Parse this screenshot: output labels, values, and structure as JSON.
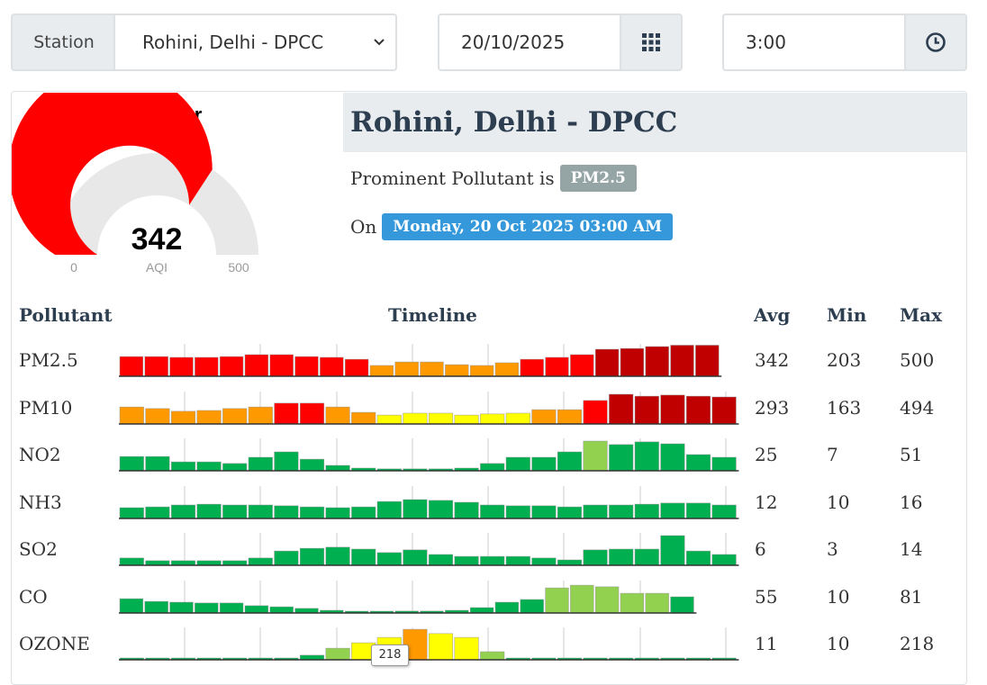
{
  "controls": {
    "station_label": "Station",
    "station_value": "Rohini, Delhi - DPCC",
    "date_value": "20/10/2025",
    "time_value": "3:00"
  },
  "gauge": {
    "category": "Very Poor",
    "value": 342,
    "value_text": "342",
    "min_text": "0",
    "max_text": "500",
    "unit_label": "AQI",
    "fill_color": "#ff0000",
    "track_color": "#e8e8e8"
  },
  "station": {
    "name": "Rohini, Delhi - DPCC",
    "prominent_prefix": "Prominent Pollutant is",
    "prominent_pollutant": "PM2.5",
    "on_prefix": "On",
    "datetime": "Monday, 20 Oct 2025 03:00 AM"
  },
  "table": {
    "headers": {
      "pollutant": "Pollutant",
      "timeline": "Timeline",
      "avg": "Avg",
      "min": "Min",
      "max": "Max"
    },
    "rows": [
      {
        "name": "PM2.5",
        "avg": "342",
        "min": "203",
        "max": "500"
      },
      {
        "name": "PM10",
        "avg": "293",
        "min": "163",
        "max": "494"
      },
      {
        "name": "NO2",
        "avg": "25",
        "min": "7",
        "max": "51"
      },
      {
        "name": "NH3",
        "avg": "12",
        "min": "10",
        "max": "16"
      },
      {
        "name": "SO2",
        "avg": "6",
        "min": "3",
        "max": "14"
      },
      {
        "name": "CO",
        "avg": "55",
        "min": "10",
        "max": "81"
      },
      {
        "name": "OZONE",
        "avg": "11",
        "min": "10",
        "max": "218"
      }
    ],
    "tooltip": "218"
  },
  "colors": {
    "good": "#00b050",
    "satisfactory": "#92d050",
    "moderate": "#ffff00",
    "poor": "#ff9900",
    "very_poor": "#ff0000",
    "severe": "#c00000"
  },
  "chart_data": {
    "type": "bar",
    "series": [
      {
        "name": "PM2.5",
        "levels": [
          0.73,
          0.73,
          0.7,
          0.7,
          0.73,
          0.8,
          0.8,
          0.73,
          0.7,
          0.63,
          0.4,
          0.53,
          0.53,
          0.43,
          0.4,
          0.5,
          0.63,
          0.7,
          0.8,
          1.0,
          1.03,
          1.1,
          1.15,
          1.15
        ],
        "colors": [
          "very_poor",
          "very_poor",
          "very_poor",
          "very_poor",
          "very_poor",
          "very_poor",
          "very_poor",
          "very_poor",
          "very_poor",
          "very_poor",
          "poor",
          "poor",
          "poor",
          "poor",
          "poor",
          "poor",
          "very_poor",
          "very_poor",
          "very_poor",
          "severe",
          "severe",
          "severe",
          "severe",
          "severe"
        ]
      },
      {
        "name": "PM10",
        "levels": [
          0.63,
          0.57,
          0.47,
          0.5,
          0.57,
          0.63,
          0.77,
          0.77,
          0.63,
          0.43,
          0.33,
          0.4,
          0.4,
          0.33,
          0.37,
          0.4,
          0.53,
          0.53,
          0.87,
          1.1,
          1.03,
          1.07,
          1.03,
          1.0
        ],
        "colors": [
          "poor",
          "poor",
          "poor",
          "poor",
          "poor",
          "poor",
          "very_poor",
          "very_poor",
          "poor",
          "poor",
          "moderate",
          "moderate",
          "moderate",
          "moderate",
          "moderate",
          "moderate",
          "poor",
          "poor",
          "very_poor",
          "severe",
          "severe",
          "severe",
          "severe",
          "severe"
        ]
      },
      {
        "name": "NO2",
        "levels": [
          0.53,
          0.53,
          0.33,
          0.33,
          0.27,
          0.5,
          0.7,
          0.43,
          0.2,
          0.1,
          0.07,
          0.07,
          0.07,
          0.1,
          0.27,
          0.5,
          0.5,
          0.7,
          1.1,
          0.97,
          1.07,
          1.0,
          0.6,
          0.5
        ],
        "colors": [
          "good",
          "good",
          "good",
          "good",
          "good",
          "good",
          "good",
          "good",
          "good",
          "good",
          "good",
          "good",
          "good",
          "good",
          "good",
          "good",
          "good",
          "good",
          "satisfactory",
          "good",
          "good",
          "good",
          "good",
          "good"
        ]
      },
      {
        "name": "NH3",
        "levels": [
          0.4,
          0.43,
          0.5,
          0.53,
          0.5,
          0.5,
          0.47,
          0.43,
          0.4,
          0.43,
          0.63,
          0.7,
          0.67,
          0.6,
          0.5,
          0.47,
          0.47,
          0.43,
          0.5,
          0.5,
          0.53,
          0.57,
          0.57,
          0.5
        ],
        "colors": [
          "good",
          "good",
          "good",
          "good",
          "good",
          "good",
          "good",
          "good",
          "good",
          "good",
          "good",
          "good",
          "good",
          "good",
          "good",
          "good",
          "good",
          "good",
          "good",
          "good",
          "good",
          "good",
          "good",
          "good"
        ]
      },
      {
        "name": "SO2",
        "levels": [
          0.27,
          0.17,
          0.17,
          0.17,
          0.17,
          0.27,
          0.53,
          0.63,
          0.67,
          0.6,
          0.47,
          0.57,
          0.4,
          0.33,
          0.33,
          0.33,
          0.27,
          0.2,
          0.57,
          0.6,
          0.6,
          1.1,
          0.53,
          0.4
        ],
        "colors": [
          "good",
          "good",
          "good",
          "good",
          "good",
          "good",
          "good",
          "good",
          "good",
          "good",
          "good",
          "good",
          "good",
          "good",
          "good",
          "good",
          "good",
          "good",
          "good",
          "good",
          "good",
          "good",
          "good",
          "good"
        ]
      },
      {
        "name": "CO",
        "levels": [
          0.53,
          0.43,
          0.4,
          0.37,
          0.37,
          0.27,
          0.23,
          0.17,
          0.1,
          0.03,
          0.03,
          0.07,
          0.07,
          0.1,
          0.2,
          0.4,
          0.5,
          0.93,
          1.03,
          0.97,
          0.73,
          0.73,
          0.6
        ],
        "colors": [
          "good",
          "good",
          "good",
          "good",
          "good",
          "good",
          "good",
          "good",
          "good",
          "good",
          "good",
          "good",
          "good",
          "good",
          "good",
          "good",
          "good",
          "satisfactory",
          "satisfactory",
          "satisfactory",
          "satisfactory",
          "satisfactory",
          "good"
        ]
      },
      {
        "name": "OZONE",
        "levels": [
          0,
          0,
          0,
          0,
          0,
          0,
          0,
          0.17,
          0.43,
          0.63,
          0.83,
          1.13,
          0.97,
          0.83,
          0.3,
          0,
          0,
          0,
          0,
          0,
          0,
          0,
          0,
          0
        ],
        "colors": [
          "good",
          "good",
          "good",
          "good",
          "good",
          "good",
          "good",
          "good",
          "satisfactory",
          "moderate",
          "moderate",
          "poor",
          "moderate",
          "moderate",
          "satisfactory",
          "good",
          "good",
          "good",
          "good",
          "good",
          "good",
          "good",
          "good",
          "good"
        ]
      }
    ]
  }
}
